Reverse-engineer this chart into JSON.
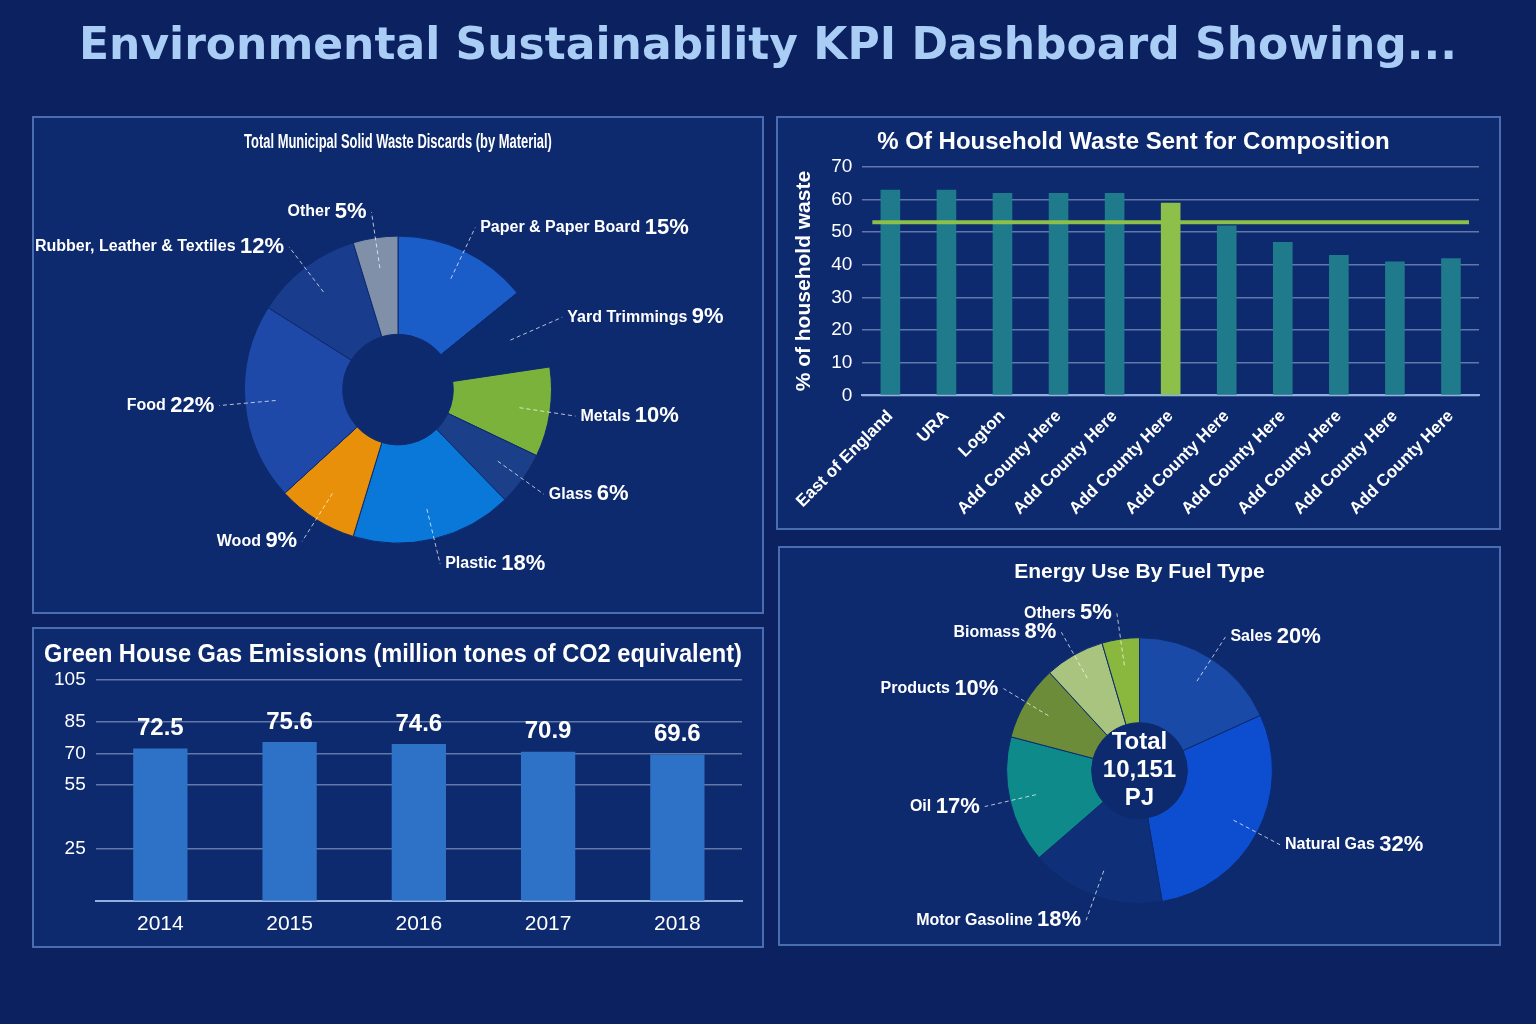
{
  "chart_data": [
    {
      "type": "other",
      "title": "Environmental Sustainability KPI Dashboard Showing..."
    },
    {
      "type": "donut",
      "title": "Total Municipal Solid Waste Discards (by Material)",
      "categories": [
        "Paper & Paper Board",
        "Yard Trimmings",
        "Metals",
        "Glass",
        "Plastic",
        "Wood",
        "Food",
        "Rubber, Leather & Textiles",
        "Other"
      ],
      "values": [
        15,
        9,
        10,
        6,
        18,
        9,
        22,
        12,
        5
      ],
      "value_labels": [
        "15%",
        "9%",
        "10%",
        "6%",
        "18%",
        "9%",
        "22%",
        "12%",
        "5%"
      ],
      "colors": [
        "#1a5cc8",
        "#0c2a6e",
        "#7ab23c",
        "#1c3f8a",
        "#0a78d8",
        "#e8900a",
        "#1e49a8",
        "#1a3c8c",
        "#7f90a8"
      ],
      "legend": false
    },
    {
      "type": "bar",
      "title": "% Of Household Waste Sent for Composition",
      "ylabel": "% of household waste",
      "categories": [
        "East of England",
        "URA",
        "Logton",
        "Add County Here",
        "Add County Here",
        "Add County Here",
        "Add County Here",
        "Add County Here",
        "Add County Here",
        "Add County Here",
        "Add County Here"
      ],
      "values": [
        63,
        63,
        62,
        62,
        62,
        59,
        52,
        47,
        43,
        41,
        42
      ],
      "colors": [
        "#1f7a8c",
        "#1f7a8c",
        "#1f7a8c",
        "#1f7a8c",
        "#1f7a8c",
        "#8cc04a",
        "#1f7a8c",
        "#1f7a8c",
        "#1f7a8c",
        "#1f7a8c",
        "#1f7a8c"
      ],
      "ylim": [
        0,
        70
      ],
      "yticks": [
        0,
        10,
        20,
        30,
        40,
        50,
        60,
        70
      ],
      "grid": "y",
      "legend": false,
      "ref_lines": [
        {
          "axis": "y",
          "value": 53,
          "color": "#8cc04a"
        }
      ]
    },
    {
      "type": "bar",
      "title": "Green House Gas Emissions (million tones of CO2 equivalent)",
      "categories": [
        "2014",
        "2015",
        "2016",
        "2017",
        "2018"
      ],
      "values": [
        72.5,
        75.6,
        74.6,
        70.9,
        69.6
      ],
      "color": "#2e72c8",
      "ylim": [
        0,
        105
      ],
      "yticks": [
        25,
        55,
        70,
        85,
        105
      ],
      "grid": "y",
      "data_labels": true,
      "legend": false
    },
    {
      "type": "donut",
      "title": "Energy Use By Fuel Type",
      "categories": [
        "Sales",
        "Natural Gas",
        "Motor Gasoline",
        "Oil",
        "Products",
        "Biomass",
        "Others"
      ],
      "values": [
        20,
        32,
        18,
        17,
        10,
        8,
        5
      ],
      "value_labels": [
        "20%",
        "32%",
        "18%",
        "17%",
        "10%",
        "8%",
        "5%"
      ],
      "colors": [
        "#1a4aa8",
        "#0d4ed0",
        "#0f2f78",
        "#0f8a8a",
        "#6c8c3a",
        "#a8c47e",
        "#8ab83e"
      ],
      "annotations": [
        "Total 10,151 PJ"
      ],
      "legend": false
    }
  ]
}
